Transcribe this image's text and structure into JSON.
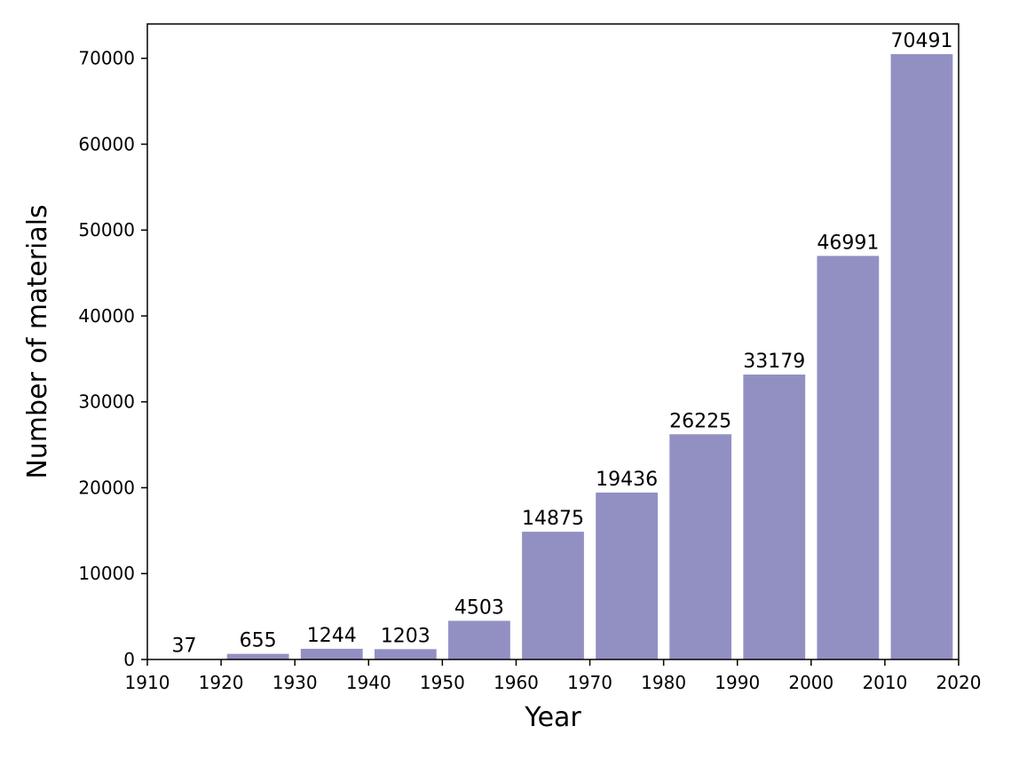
{
  "chart_data": {
    "type": "bar",
    "xlabel": "Year",
    "ylabel": "Number of materials",
    "xlim": [
      1910,
      2020
    ],
    "ylim": [
      0,
      74000
    ],
    "x_ticks": [
      "1910",
      "1920",
      "1930",
      "1940",
      "1950",
      "1960",
      "1970",
      "1980",
      "1990",
      "2000",
      "2010",
      "2020"
    ],
    "y_ticks": [
      "0",
      "10000",
      "20000",
      "30000",
      "40000",
      "50000",
      "60000",
      "70000"
    ],
    "bar_color": "#9290c3",
    "bars": [
      {
        "start": 1910,
        "end": 1920,
        "value": 37,
        "label": "37"
      },
      {
        "start": 1920,
        "end": 1930,
        "value": 655,
        "label": "655"
      },
      {
        "start": 1930,
        "end": 1940,
        "value": 1244,
        "label": "1244"
      },
      {
        "start": 1940,
        "end": 1950,
        "value": 1203,
        "label": "1203"
      },
      {
        "start": 1950,
        "end": 1960,
        "value": 4503,
        "label": "4503"
      },
      {
        "start": 1960,
        "end": 1970,
        "value": 14875,
        "label": "14875"
      },
      {
        "start": 1970,
        "end": 1980,
        "value": 19436,
        "label": "19436"
      },
      {
        "start": 1980,
        "end": 1990,
        "value": 26225,
        "label": "26225"
      },
      {
        "start": 1990,
        "end": 2000,
        "value": 33179,
        "label": "33179"
      },
      {
        "start": 2000,
        "end": 2010,
        "value": 46991,
        "label": "46991"
      },
      {
        "start": 2010,
        "end": 2020,
        "value": 70491,
        "label": "70491"
      }
    ],
    "grid": false,
    "legend": "none"
  }
}
